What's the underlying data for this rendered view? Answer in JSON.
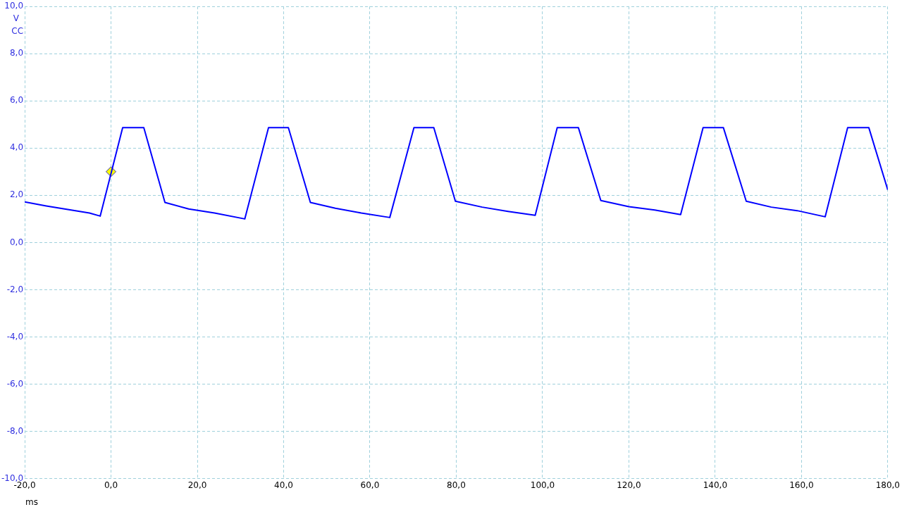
{
  "chart_data": {
    "type": "line",
    "xlabel": "ms",
    "ylabel": "V\nCC",
    "xlim": [
      -20,
      180
    ],
    "ylim": [
      -10,
      10
    ],
    "xticks": [
      {
        "value": -20,
        "label": "-20,0"
      },
      {
        "value": 0,
        "label": "0,0"
      },
      {
        "value": 20,
        "label": "20,0"
      },
      {
        "value": 40,
        "label": "40,0"
      },
      {
        "value": 60,
        "label": "60,0"
      },
      {
        "value": 80,
        "label": "80,0"
      },
      {
        "value": 100,
        "label": "100,0"
      },
      {
        "value": 120,
        "label": "120,0"
      },
      {
        "value": 140,
        "label": "140,0"
      },
      {
        "value": 160,
        "label": "160,0"
      },
      {
        "value": 180,
        "label": "180,0"
      }
    ],
    "yticks": [
      {
        "value": -10,
        "label": "-10,0"
      },
      {
        "value": -8,
        "label": "-8,0"
      },
      {
        "value": -6,
        "label": "-6,0"
      },
      {
        "value": -4,
        "label": "-4,0"
      },
      {
        "value": -2,
        "label": "-2,0"
      },
      {
        "value": 0,
        "label": "0,0"
      },
      {
        "value": 2,
        "label": "2,0"
      },
      {
        "value": 4,
        "label": "4,0"
      },
      {
        "value": 6,
        "label": "6,0"
      },
      {
        "value": 8,
        "label": "8,0"
      },
      {
        "value": 10,
        "label": "10,0"
      }
    ],
    "grid": true,
    "legend": false,
    "marker": "none",
    "line_style": "solid",
    "series": [
      {
        "color": "#0000ff",
        "x": [
          -20,
          -15,
          -10,
          -5,
          -2.5,
          2.7,
          7.6,
          12.5,
          18,
          24,
          31,
          36.5,
          41.1,
          46.2,
          52,
          58,
          64.6,
          70.2,
          74.8,
          79.8,
          86,
          92,
          98.3,
          103.4,
          108.3,
          113.5,
          120,
          126,
          132,
          137.2,
          141.9,
          147.2,
          153,
          159,
          165.5,
          170.7,
          175.6,
          180
        ],
        "values": [
          1.72,
          1.55,
          1.4,
          1.25,
          1.12,
          4.87,
          4.87,
          1.7,
          1.42,
          1.25,
          1.0,
          4.87,
          4.87,
          1.7,
          1.45,
          1.25,
          1.06,
          4.87,
          4.87,
          1.75,
          1.5,
          1.32,
          1.15,
          4.87,
          4.87,
          1.78,
          1.52,
          1.38,
          1.18,
          4.87,
          4.87,
          1.75,
          1.5,
          1.35,
          1.09,
          4.87,
          4.87,
          2.23
        ]
      },
      {
        "type": "scatter",
        "color": "#ffff00",
        "marker": "diamond",
        "x": [
          0
        ],
        "values": [
          3.0
        ]
      }
    ]
  }
}
